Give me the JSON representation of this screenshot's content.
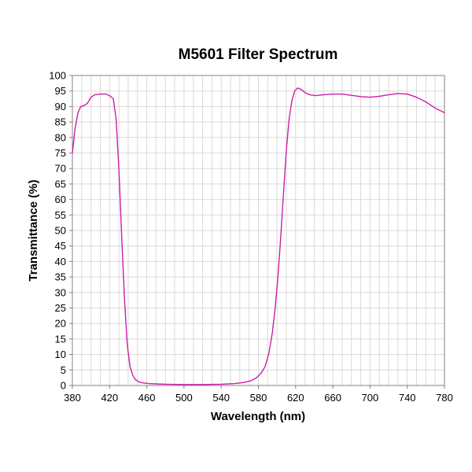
{
  "chart_data": {
    "type": "line",
    "title": "M5601 Filter Spectrum",
    "xlabel": "Wavelength (nm)",
    "ylabel": "Transmittance (%)",
    "xlim": [
      380,
      780
    ],
    "ylim": [
      0,
      100
    ],
    "x_ticks": [
      380,
      420,
      460,
      500,
      540,
      580,
      620,
      660,
      700,
      740,
      780
    ],
    "y_ticks": [
      0,
      5,
      10,
      15,
      20,
      25,
      30,
      35,
      40,
      45,
      50,
      55,
      60,
      65,
      70,
      75,
      80,
      85,
      90,
      95,
      100
    ],
    "grid": true,
    "legend": "none",
    "series": [
      {
        "color": "#cc1fa8",
        "points": [
          [
            380,
            75
          ],
          [
            383,
            83
          ],
          [
            386,
            88
          ],
          [
            389,
            90
          ],
          [
            392,
            90.2
          ],
          [
            396,
            91
          ],
          [
            400,
            93
          ],
          [
            404,
            93.8
          ],
          [
            410,
            94
          ],
          [
            416,
            94
          ],
          [
            420,
            93.5
          ],
          [
            424,
            92.5
          ],
          [
            427,
            86
          ],
          [
            430,
            70
          ],
          [
            433,
            48
          ],
          [
            436,
            28
          ],
          [
            439,
            13
          ],
          [
            442,
            6
          ],
          [
            445,
            3.2
          ],
          [
            448,
            1.8
          ],
          [
            452,
            1.1
          ],
          [
            456,
            0.8
          ],
          [
            462,
            0.6
          ],
          [
            470,
            0.5
          ],
          [
            480,
            0.4
          ],
          [
            500,
            0.3
          ],
          [
            520,
            0.3
          ],
          [
            540,
            0.4
          ],
          [
            555,
            0.6
          ],
          [
            565,
            1
          ],
          [
            572,
            1.5
          ],
          [
            578,
            2.5
          ],
          [
            583,
            4
          ],
          [
            587,
            6
          ],
          [
            591,
            10
          ],
          [
            595,
            17
          ],
          [
            598,
            25
          ],
          [
            601,
            35
          ],
          [
            604,
            48
          ],
          [
            607,
            62
          ],
          [
            610,
            76
          ],
          [
            613,
            86
          ],
          [
            616,
            92
          ],
          [
            619,
            95
          ],
          [
            622,
            96
          ],
          [
            626,
            95.5
          ],
          [
            630,
            94.5
          ],
          [
            635,
            93.8
          ],
          [
            642,
            93.5
          ],
          [
            650,
            93.8
          ],
          [
            660,
            94
          ],
          [
            670,
            94
          ],
          [
            680,
            93.6
          ],
          [
            690,
            93.2
          ],
          [
            700,
            93
          ],
          [
            710,
            93.3
          ],
          [
            720,
            93.8
          ],
          [
            730,
            94.2
          ],
          [
            740,
            94
          ],
          [
            750,
            93
          ],
          [
            760,
            91.5
          ],
          [
            770,
            89.5
          ],
          [
            780,
            88
          ]
        ]
      }
    ]
  }
}
